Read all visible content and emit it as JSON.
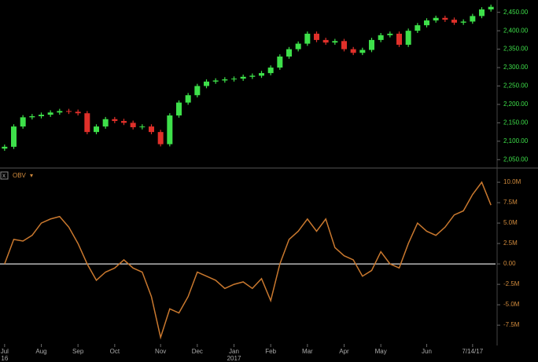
{
  "chart_data": [
    {
      "type": "candlestick",
      "up_color": "#3ee04a",
      "down_color": "#e0302a",
      "label_color": "#3ee04a",
      "open": [
        2080,
        2085,
        2140,
        2165,
        2168,
        2172,
        2178,
        2182,
        2180,
        2176,
        2125,
        2140,
        2160,
        2155,
        2150,
        2138,
        2140,
        2125,
        2092,
        2170,
        2205,
        2225,
        2250,
        2262,
        2265,
        2268,
        2270,
        2275,
        2278,
        2285,
        2300,
        2330,
        2350,
        2365,
        2392,
        2375,
        2368,
        2372,
        2350,
        2340,
        2348,
        2375,
        2388,
        2392,
        2362,
        2400,
        2415,
        2428,
        2435,
        2430,
        2422,
        2425,
        2440,
        2458
      ],
      "high": [
        2091,
        2146,
        2171,
        2174,
        2178,
        2184,
        2188,
        2188,
        2186,
        2182,
        2146,
        2166,
        2166,
        2161,
        2156,
        2146,
        2146,
        2131,
        2176,
        2211,
        2231,
        2256,
        2268,
        2271,
        2274,
        2276,
        2281,
        2284,
        2291,
        2306,
        2336,
        2356,
        2371,
        2398,
        2398,
        2381,
        2378,
        2378,
        2356,
        2354,
        2381,
        2394,
        2398,
        2398,
        2406,
        2421,
        2434,
        2441,
        2441,
        2436,
        2431,
        2446,
        2464,
        2471
      ],
      "low": [
        2074,
        2079,
        2134,
        2159,
        2162,
        2166,
        2172,
        2174,
        2170,
        2119,
        2119,
        2134,
        2149,
        2144,
        2132,
        2132,
        2119,
        2086,
        2086,
        2164,
        2199,
        2219,
        2244,
        2256,
        2259,
        2262,
        2264,
        2269,
        2272,
        2279,
        2294,
        2324,
        2344,
        2359,
        2369,
        2362,
        2362,
        2344,
        2334,
        2334,
        2342,
        2369,
        2382,
        2356,
        2356,
        2394,
        2409,
        2422,
        2424,
        2416,
        2416,
        2419,
        2434,
        2452
      ],
      "close": [
        2085,
        2140,
        2165,
        2168,
        2172,
        2178,
        2182,
        2180,
        2176,
        2125,
        2140,
        2160,
        2155,
        2150,
        2138,
        2140,
        2125,
        2092,
        2170,
        2205,
        2225,
        2250,
        2262,
        2265,
        2268,
        2270,
        2275,
        2278,
        2285,
        2300,
        2330,
        2350,
        2365,
        2392,
        2375,
        2368,
        2372,
        2350,
        2340,
        2348,
        2375,
        2388,
        2392,
        2362,
        2400,
        2415,
        2428,
        2435,
        2430,
        2422,
        2425,
        2440,
        2458,
        2465
      ],
      "ylim": [
        2040,
        2475
      ],
      "yticks": [
        {
          "value": 2050,
          "label": "2,050.00"
        },
        {
          "value": 2100,
          "label": "2,100.00"
        },
        {
          "value": 2150,
          "label": "2,150.00"
        },
        {
          "value": 2200,
          "label": "2,200.00"
        },
        {
          "value": 2250,
          "label": "2,250.00"
        },
        {
          "value": 2300,
          "label": "2,300.00"
        },
        {
          "value": 2350,
          "label": "2,350.00"
        },
        {
          "value": 2400,
          "label": "2,400.00"
        },
        {
          "value": 2450,
          "label": "2,450.00"
        }
      ]
    },
    {
      "type": "line",
      "label_color": "#d08a3c",
      "categories": [
        "Jul",
        null,
        null,
        null,
        "Aug",
        null,
        null,
        null,
        "Sep",
        null,
        null,
        null,
        "Oct",
        null,
        null,
        null,
        null,
        "Nov",
        null,
        null,
        null,
        "Dec",
        null,
        null,
        null,
        "Jan",
        null,
        null,
        null,
        "Feb",
        null,
        null,
        null,
        "Mar",
        null,
        null,
        null,
        "Apr",
        null,
        null,
        null,
        "May",
        null,
        null,
        null,
        null,
        "Jun",
        null,
        null,
        null,
        null,
        "7/14/17",
        null,
        null
      ],
      "sublabels": [
        "16",
        null,
        null,
        null,
        null,
        null,
        null,
        null,
        null,
        null,
        null,
        null,
        null,
        null,
        null,
        null,
        null,
        null,
        null,
        null,
        null,
        null,
        null,
        null,
        null,
        "2017",
        null,
        null,
        null,
        null,
        null,
        null,
        null,
        null,
        null,
        null,
        null,
        null,
        null,
        null,
        null,
        null,
        null,
        null,
        null,
        null,
        null,
        null,
        null,
        null,
        null,
        null,
        null,
        null
      ],
      "series": [
        {
          "name": "OBV",
          "color": "#c9782e",
          "values": [
            0,
            3000000,
            2800000,
            3500000,
            5000000,
            5500000,
            5800000,
            4500000,
            2500000,
            0,
            -2000000,
            -1000000,
            -500000,
            500000,
            -500000,
            -1000000,
            -4000000,
            -9000000,
            -5500000,
            -6000000,
            -4000000,
            -1000000,
            -1500000,
            -2000000,
            -3000000,
            -2500000,
            -2200000,
            -3000000,
            -1800000,
            -4500000,
            0,
            3000000,
            4000000,
            5500000,
            4000000,
            5500000,
            2000000,
            1000000,
            500000,
            -1500000,
            -800000,
            1500000,
            0,
            -500000,
            2500000,
            5000000,
            4000000,
            3500000,
            4500000,
            6000000,
            6500000,
            8500000,
            10000000,
            7200000
          ]
        }
      ],
      "hline": 0,
      "ylim": [
        -9700000,
        10200000
      ],
      "yticks": [
        {
          "value": -7500000,
          "label": "-7.5M"
        },
        {
          "value": -5000000,
          "label": "-5.0M"
        },
        {
          "value": -2500000,
          "label": "-2.5M"
        },
        {
          "value": 0,
          "label": "0.00"
        },
        {
          "value": 2500000,
          "label": "2.5M"
        },
        {
          "value": 5000000,
          "label": "5.0M"
        },
        {
          "value": 7500000,
          "label": "7.5M"
        },
        {
          "value": 10000000,
          "label": "10.0M"
        }
      ]
    }
  ]
}
